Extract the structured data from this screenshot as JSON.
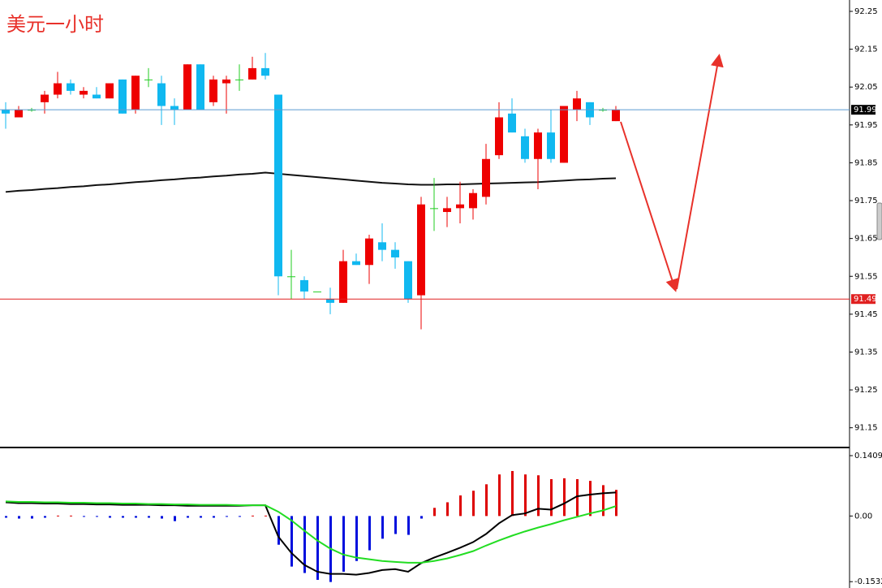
{
  "chart_data": [
    {
      "type": "candlestick",
      "title": "美元一小时",
      "open": [
        91.99,
        91.97,
        91.99,
        92.01,
        92.03,
        92.06,
        92.03,
        92.03,
        92.02,
        92.07,
        91.99,
        92.07,
        92.06,
        92.0,
        91.99,
        92.11,
        92.01,
        92.06,
        92.07,
        92.07,
        92.1,
        92.03,
        91.55,
        91.54,
        91.51,
        91.49,
        91.48,
        91.59,
        91.58,
        91.64,
        91.62,
        91.59,
        91.5,
        91.73,
        91.72,
        91.73,
        91.73,
        91.76,
        91.87,
        91.98,
        91.92,
        91.86,
        91.93,
        91.85,
        91.99,
        92.01,
        91.99,
        91.96
      ],
      "high": [
        92.01,
        92.0,
        91.995,
        92.04,
        92.09,
        92.07,
        92.05,
        92.05,
        92.06,
        92.07,
        92.08,
        92.1,
        92.08,
        92.02,
        92.11,
        92.11,
        92.08,
        92.08,
        92.11,
        92.13,
        92.14,
        92.03,
        91.62,
        91.55,
        91.51,
        91.52,
        91.62,
        91.61,
        91.66,
        91.69,
        91.64,
        91.59,
        91.76,
        91.81,
        91.76,
        91.8,
        91.78,
        91.9,
        92.01,
        92.02,
        91.94,
        91.94,
        91.99,
        92.0,
        92.04,
        92.01,
        91.995,
        92.0
      ],
      "low": [
        91.94,
        91.97,
        91.985,
        91.98,
        92.02,
        92.03,
        92.02,
        92.02,
        92.02,
        91.98,
        91.98,
        92.05,
        91.95,
        91.95,
        91.99,
        91.99,
        92.0,
        91.98,
        92.04,
        92.07,
        92.07,
        91.5,
        91.49,
        91.49,
        91.51,
        91.45,
        91.48,
        91.58,
        91.53,
        91.59,
        91.57,
        91.48,
        91.41,
        91.67,
        91.68,
        91.69,
        91.7,
        91.74,
        91.86,
        91.93,
        91.85,
        91.78,
        91.85,
        91.85,
        91.96,
        91.95,
        91.985,
        91.96
      ],
      "close": [
        91.98,
        91.99,
        91.99,
        92.03,
        92.06,
        92.04,
        92.04,
        92.02,
        92.06,
        91.98,
        92.08,
        92.07,
        92.0,
        91.99,
        92.11,
        91.99,
        92.07,
        92.07,
        92.07,
        92.1,
        92.08,
        91.55,
        91.55,
        91.51,
        91.51,
        91.48,
        91.59,
        91.58,
        91.65,
        91.62,
        91.6,
        91.49,
        91.74,
        91.73,
        91.73,
        91.74,
        91.77,
        91.86,
        91.97,
        91.93,
        91.86,
        91.93,
        91.86,
        92.0,
        92.02,
        91.97,
        91.99,
        91.99
      ],
      "up_color": "#ee0000",
      "down_color": "#10b8f0",
      "doji_color": "#22cc22",
      "ma": {
        "color": "#111111",
        "values": [
          91.773,
          91.776,
          91.778,
          91.781,
          91.783,
          91.786,
          91.788,
          91.791,
          91.793,
          91.796,
          91.799,
          91.801,
          91.804,
          91.806,
          91.809,
          91.811,
          91.814,
          91.816,
          91.819,
          91.821,
          91.824,
          91.821,
          91.818,
          91.815,
          91.812,
          91.809,
          91.806,
          91.803,
          91.8,
          91.797,
          91.795,
          91.793,
          91.792,
          91.792,
          91.793,
          91.793,
          91.794,
          91.795,
          91.796,
          91.797,
          91.798,
          91.799,
          91.801,
          91.803,
          91.805,
          91.806,
          91.808,
          91.809
        ]
      },
      "price_lines": [
        {
          "value": 91.99,
          "color": "#5a9bd0",
          "label_bg": "#000000"
        },
        {
          "value": 91.49,
          "color": "#e02020",
          "label_bg": "#e02020"
        }
      ],
      "ylim": [
        91.1,
        92.28
      ],
      "yticks": [
        92.25,
        92.15,
        92.05,
        91.95,
        91.85,
        91.75,
        91.65,
        91.55,
        91.45,
        91.35,
        91.25,
        91.15
      ]
    },
    {
      "type": "macd",
      "histogram": [
        -0.004,
        -0.006,
        -0.006,
        -0.004,
        0.001,
        0.001,
        -0.002,
        -0.002,
        -0.004,
        -0.004,
        -0.004,
        -0.004,
        -0.006,
        -0.012,
        -0.004,
        -0.004,
        -0.004,
        -0.002,
        -0.002,
        0.001,
        0.001,
        -0.067,
        -0.118,
        -0.133,
        -0.149,
        -0.154,
        -0.13,
        -0.105,
        -0.08,
        -0.053,
        -0.042,
        -0.044,
        -0.006,
        0.019,
        0.032,
        0.048,
        0.059,
        0.074,
        0.097,
        0.105,
        0.097,
        0.095,
        0.086,
        0.088,
        0.086,
        0.082,
        0.072,
        0.061
      ],
      "up_color": "#dd0000",
      "down_color": "#0010dd",
      "series": [
        {
          "color": "#000000",
          "values": [
            0.032,
            0.03,
            0.03,
            0.029,
            0.029,
            0.028,
            0.028,
            0.027,
            0.027,
            0.026,
            0.026,
            0.026,
            0.025,
            0.025,
            0.024,
            0.024,
            0.024,
            0.024,
            0.024,
            0.025,
            0.025,
            -0.048,
            -0.086,
            -0.114,
            -0.13,
            -0.135,
            -0.135,
            -0.137,
            -0.133,
            -0.126,
            -0.124,
            -0.13,
            -0.11,
            -0.097,
            -0.086,
            -0.074,
            -0.061,
            -0.042,
            -0.017,
            0.002,
            0.006,
            0.017,
            0.015,
            0.029,
            0.046,
            0.05,
            0.053,
            0.055
          ]
        },
        {
          "color": "#22dd22",
          "values": [
            0.034,
            0.033,
            0.033,
            0.032,
            0.032,
            0.031,
            0.031,
            0.03,
            0.03,
            0.029,
            0.029,
            0.028,
            0.028,
            0.027,
            0.027,
            0.026,
            0.026,
            0.026,
            0.025,
            0.025,
            0.025,
            0.01,
            -0.01,
            -0.034,
            -0.057,
            -0.076,
            -0.09,
            -0.097,
            -0.101,
            -0.105,
            -0.107,
            -0.109,
            -0.109,
            -0.105,
            -0.099,
            -0.091,
            -0.082,
            -0.069,
            -0.057,
            -0.046,
            -0.036,
            -0.027,
            -0.019,
            -0.01,
            -0.002,
            0.006,
            0.013,
            0.023
          ]
        }
      ],
      "ylim": [
        -0.168,
        0.158
      ],
      "yticks": [
        0.1409,
        {
          "value": 0,
          "label": "0.00"
        },
        -0.1532
      ]
    }
  ]
}
